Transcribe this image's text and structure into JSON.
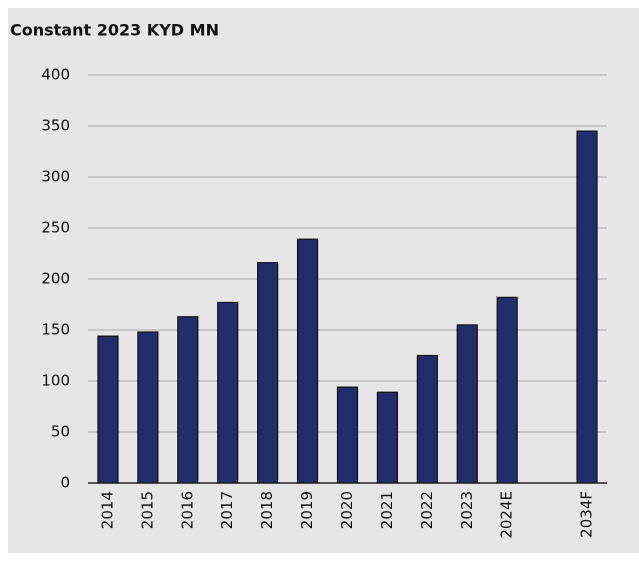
{
  "chart_data": {
    "type": "bar",
    "title": "Constant 2023 KYD MN",
    "categories": [
      "2014",
      "2015",
      "2016",
      "2017",
      "2018",
      "2019",
      "2020",
      "2021",
      "2022",
      "2023",
      "2024E",
      null,
      "2034F"
    ],
    "values": [
      144,
      148,
      163,
      177,
      216,
      239,
      94,
      89,
      125,
      155,
      182,
      null,
      345
    ],
    "color": "#232d6b",
    "ylim": [
      0,
      400
    ],
    "yticks": [
      0,
      50,
      100,
      150,
      200,
      250,
      300,
      350,
      400
    ],
    "grid": true
  }
}
